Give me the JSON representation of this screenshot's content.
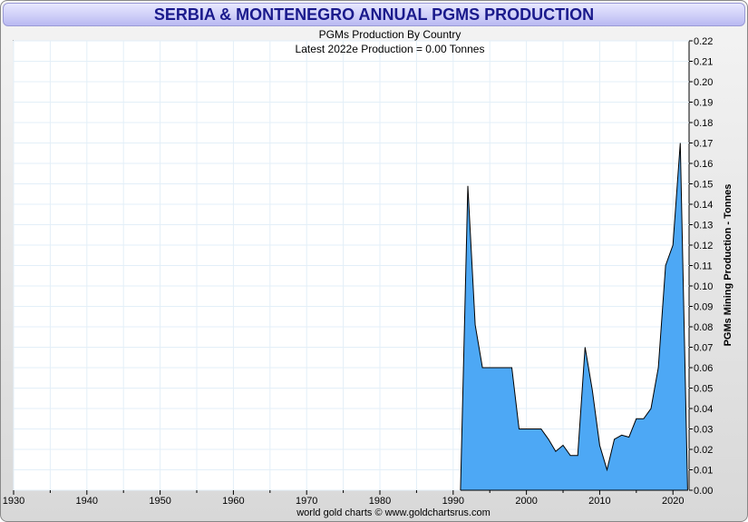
{
  "chart_data": {
    "type": "area",
    "title": "SERBIA & MONTENEGRO ANNUAL PGMS PRODUCTION",
    "subtitle": "PGMs Production By Country",
    "annotation": "Latest 2022e  Production = 0.00 Tonnes",
    "ylabel": "PGMs Mining Production - Tonnes",
    "xlabel": "",
    "footer": "world gold charts © www.goldchartsrus.com",
    "xlim": [
      1930,
      2022
    ],
    "ylim": [
      0,
      0.22
    ],
    "xticks": [
      1930,
      1940,
      1950,
      1960,
      1970,
      1980,
      1990,
      2000,
      2010,
      2020
    ],
    "yticks": [
      0,
      0.01,
      0.02,
      0.03,
      0.04,
      0.05,
      0.06,
      0.07,
      0.08,
      0.09,
      0.1,
      0.11,
      0.12,
      0.13,
      0.14,
      0.15,
      0.16,
      0.17,
      0.18,
      0.19,
      0.2,
      0.21,
      0.22
    ],
    "grid": true,
    "fill_color": "#4da8f5",
    "x": [
      1991,
      1992,
      1993,
      1994,
      1995,
      1996,
      1997,
      1998,
      1999,
      2000,
      2001,
      2002,
      2003,
      2004,
      2005,
      2006,
      2007,
      2008,
      2009,
      2010,
      2011,
      2012,
      2013,
      2014,
      2015,
      2016,
      2017,
      2018,
      2019,
      2020,
      2021,
      2022
    ],
    "y": [
      0,
      0.149,
      0.081,
      0.06,
      0.06,
      0.06,
      0.06,
      0.06,
      0.03,
      0.03,
      0.03,
      0.03,
      0.025,
      0.019,
      0.022,
      0.017,
      0.017,
      0.07,
      0.049,
      0.022,
      0.01,
      0.025,
      0.027,
      0.026,
      0.035,
      0.035,
      0.04,
      0.06,
      0.11,
      0.12,
      0.17,
      0.0
    ]
  }
}
